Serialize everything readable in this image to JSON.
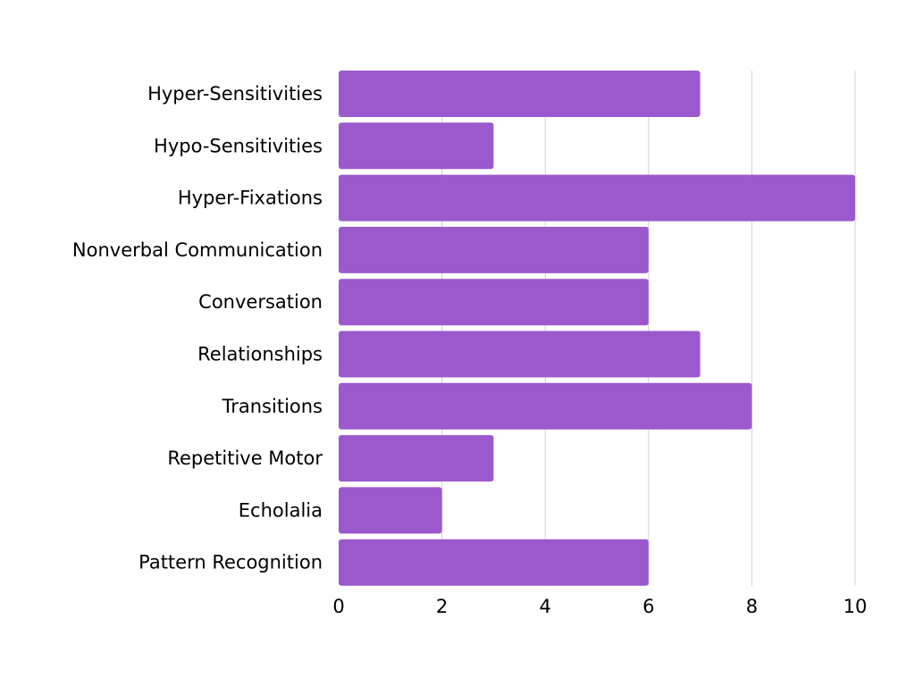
{
  "chart_data": {
    "type": "bar",
    "orientation": "horizontal",
    "categories": [
      "Hyper-Sensitivities",
      "Hypo-Sensitivities",
      "Hyper-Fixations",
      "Nonverbal Communication",
      "Conversation",
      "Relationships",
      "Transitions",
      "Repetitive Motor",
      "Echolalia",
      "Pattern Recognition"
    ],
    "values": [
      7,
      3,
      10,
      6,
      6,
      7,
      8,
      3,
      2,
      6
    ],
    "title": "",
    "xlabel": "",
    "ylabel": "",
    "xlim": [
      0,
      10
    ],
    "xticks": [
      0,
      2,
      4,
      6,
      8,
      10
    ],
    "grid": "vertical",
    "legend": "none",
    "colors": {
      "bar": "#9b59cd",
      "grid": "#d0d0d0",
      "text": "#000000"
    }
  }
}
